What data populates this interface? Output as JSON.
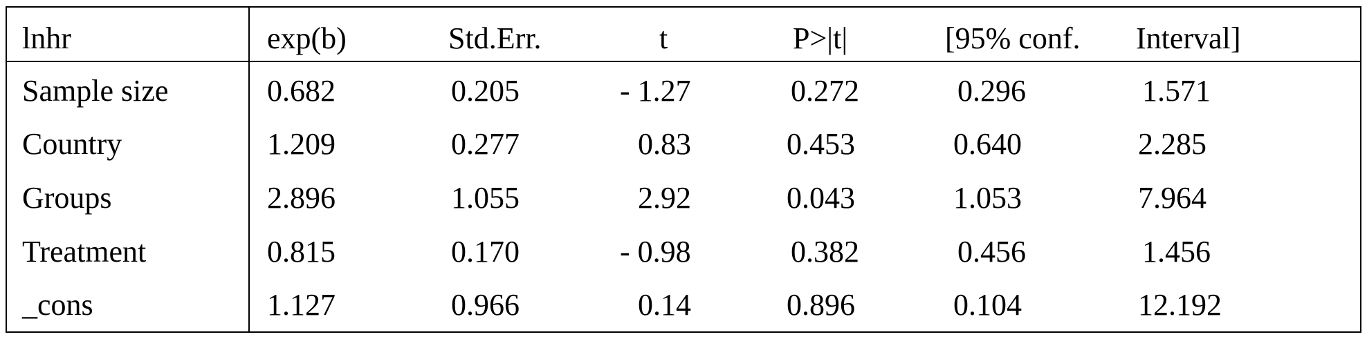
{
  "table": {
    "headers": [
      "lnhr",
      "exp(b)",
      "Std.Err.",
      "t",
      "P>|t|",
      "[95% conf.",
      "Interval]"
    ],
    "rows": [
      [
        "Sample size",
        "0.682",
        "0.205",
        "- 1.27",
        "0.272",
        "0.296",
        "1.571"
      ],
      [
        "Country",
        "1.209",
        "0.277",
        "0.83",
        "0.453",
        "0.640",
        "2.285"
      ],
      [
        "Groups",
        "2.896",
        "1.055",
        "2.92",
        "0.043",
        "1.053",
        "7.964"
      ],
      [
        "Treatment",
        "0.815",
        "0.170",
        "- 0.98",
        "0.382",
        "0.456",
        "1.456"
      ],
      [
        "_cons",
        "1.127",
        "0.966",
        "0.14",
        "0.896",
        "0.104",
        "12.192"
      ]
    ]
  }
}
